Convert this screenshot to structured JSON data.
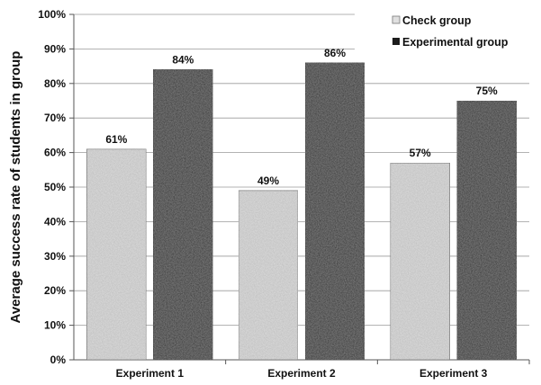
{
  "chart_data": {
    "type": "bar",
    "title": "",
    "xlabel": "",
    "ylabel": "Average success rate of students in group",
    "ylim": [
      0,
      100
    ],
    "yticks": [
      "0%",
      "10%",
      "20%",
      "30%",
      "40%",
      "50%",
      "60%",
      "70%",
      "80%",
      "90%",
      "100%"
    ],
    "categories": [
      "Experiment 1",
      "Experiment 2",
      "Experiment 3"
    ],
    "series": [
      {
        "name": "Check group",
        "values": [
          61,
          49,
          57
        ],
        "labels": [
          "61%",
          "49%",
          "57%"
        ],
        "color": "#e0e0e0"
      },
      {
        "name": "Experimental group",
        "values": [
          84,
          86,
          75
        ],
        "labels": [
          "84%",
          "86%",
          "75%"
        ],
        "color": "#1c1c1c"
      }
    ],
    "grid": true,
    "legend": "top-right"
  }
}
